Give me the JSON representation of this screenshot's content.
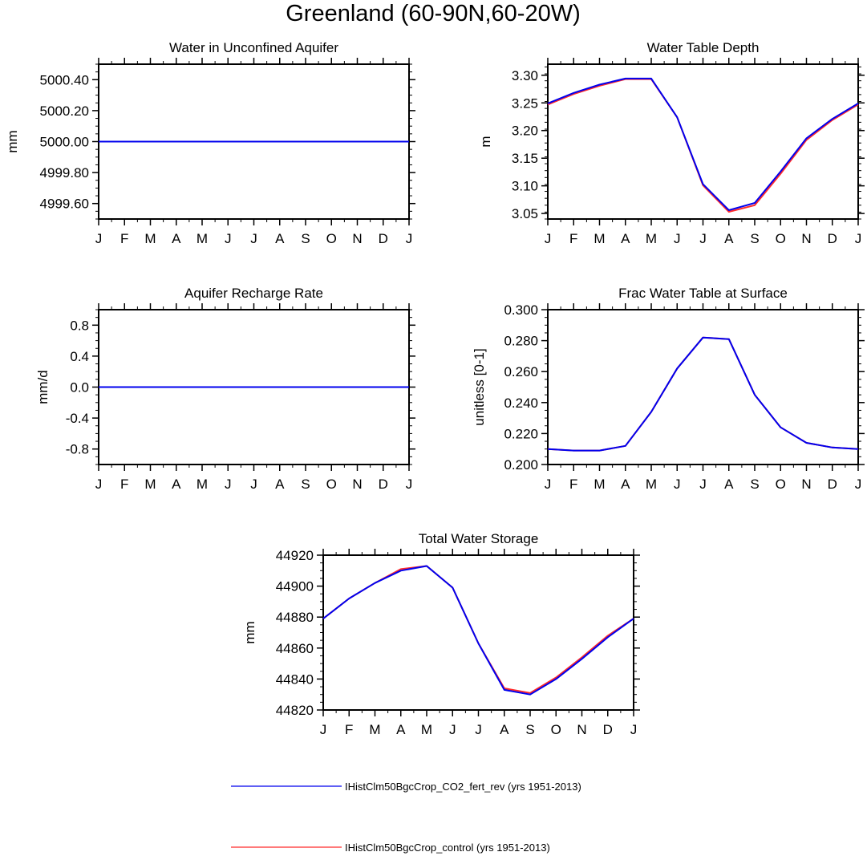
{
  "page": {
    "title": "Greenland (60-90N,60-20W)"
  },
  "colors": {
    "series_rev": "#0000ee",
    "series_control": "#ff2a2a",
    "axis": "#000000"
  },
  "legend": {
    "placement": "bottom-center",
    "entries": [
      {
        "label": "IHistClm50BgcCrop_CO2_fert_rev (yrs 1951-2013)",
        "color": "#0000ee"
      },
      {
        "label": "IHistClm50BgcCrop_control (yrs 1951-2013)",
        "color": "#ff2a2a"
      }
    ]
  },
  "chart_data": [
    {
      "id": "water-in-unconfined-aquifer",
      "type": "line",
      "title": "Water in Unconfined Aquifer",
      "xlabel": "",
      "ylabel": "mm",
      "x": [
        "J",
        "F",
        "M",
        "A",
        "M",
        "J",
        "J",
        "A",
        "S",
        "O",
        "N",
        "D",
        "J"
      ],
      "ylim": [
        4999.5,
        5000.5
      ],
      "yticks": [
        4999.6,
        4999.8,
        5000.0,
        5000.2,
        5000.4
      ],
      "ytick_labels": [
        "4999.60",
        "4999.80",
        "5000.00",
        "5000.20",
        "5000.40"
      ],
      "series": [
        {
          "name": "IHistClm50BgcCrop_control (yrs 1951-2013)",
          "values": [
            5000,
            5000,
            5000,
            5000,
            5000,
            5000,
            5000,
            5000,
            5000,
            5000,
            5000,
            5000,
            5000
          ]
        },
        {
          "name": "IHistClm50BgcCrop_CO2_fert_rev (yrs 1951-2013)",
          "values": [
            5000,
            5000,
            5000,
            5000,
            5000,
            5000,
            5000,
            5000,
            5000,
            5000,
            5000,
            5000,
            5000
          ]
        }
      ]
    },
    {
      "id": "water-table-depth",
      "type": "line",
      "title": "Water Table Depth",
      "xlabel": "",
      "ylabel": "m",
      "x": [
        "J",
        "F",
        "M",
        "A",
        "M",
        "J",
        "J",
        "A",
        "S",
        "O",
        "N",
        "D",
        "J"
      ],
      "ylim": [
        3.04,
        3.32
      ],
      "yticks": [
        3.05,
        3.1,
        3.15,
        3.2,
        3.25,
        3.3
      ],
      "ytick_labels": [
        "3.05",
        "3.10",
        "3.15",
        "3.20",
        "3.25",
        "3.30"
      ],
      "series": [
        {
          "name": "IHistClm50BgcCrop_control (yrs 1951-2013)",
          "values": [
            3.247,
            3.266,
            3.281,
            3.293,
            3.293,
            3.224,
            3.101,
            3.053,
            3.065,
            3.122,
            3.183,
            3.219,
            3.247
          ]
        },
        {
          "name": "IHistClm50BgcCrop_CO2_fert_rev (yrs 1951-2013)",
          "values": [
            3.249,
            3.268,
            3.283,
            3.294,
            3.294,
            3.224,
            3.103,
            3.056,
            3.069,
            3.126,
            3.186,
            3.221,
            3.249
          ]
        }
      ]
    },
    {
      "id": "aquifer-recharge-rate",
      "type": "line",
      "title": "Aquifer Recharge Rate",
      "xlabel": "",
      "ylabel": "mm/d",
      "x": [
        "J",
        "F",
        "M",
        "A",
        "M",
        "J",
        "J",
        "A",
        "S",
        "O",
        "N",
        "D",
        "J"
      ],
      "ylim": [
        -1.0,
        1.0
      ],
      "yticks": [
        -0.8,
        -0.4,
        0.0,
        0.4,
        0.8
      ],
      "ytick_labels": [
        "-0.8",
        "-0.4",
        "0.0",
        "0.4",
        "0.8"
      ],
      "series": [
        {
          "name": "IHistClm50BgcCrop_control (yrs 1951-2013)",
          "values": [
            0,
            0,
            0,
            0,
            0,
            0,
            0,
            0,
            0,
            0,
            0,
            0,
            0
          ]
        },
        {
          "name": "IHistClm50BgcCrop_CO2_fert_rev (yrs 1951-2013)",
          "values": [
            0,
            0,
            0,
            0,
            0,
            0,
            0,
            0,
            0,
            0,
            0,
            0,
            0
          ]
        }
      ]
    },
    {
      "id": "frac-water-table-at-surface",
      "type": "line",
      "title": "Frac Water Table at Surface",
      "xlabel": "",
      "ylabel": "unitless [0-1]",
      "x": [
        "J",
        "F",
        "M",
        "A",
        "M",
        "J",
        "J",
        "A",
        "S",
        "O",
        "N",
        "D",
        "J"
      ],
      "ylim": [
        0.2,
        0.3
      ],
      "yticks": [
        0.2,
        0.22,
        0.24,
        0.26,
        0.28,
        0.3
      ],
      "ytick_labels": [
        "0.200",
        "0.220",
        "0.240",
        "0.260",
        "0.280",
        "0.300"
      ],
      "series": [
        {
          "name": "IHistClm50BgcCrop_control (yrs 1951-2013)",
          "values": [
            0.21,
            0.209,
            0.209,
            0.212,
            0.234,
            0.262,
            0.282,
            0.281,
            0.245,
            0.224,
            0.214,
            0.211,
            0.21
          ]
        },
        {
          "name": "IHistClm50BgcCrop_CO2_fert_rev (yrs 1951-2013)",
          "values": [
            0.21,
            0.209,
            0.209,
            0.212,
            0.234,
            0.262,
            0.282,
            0.281,
            0.245,
            0.224,
            0.214,
            0.211,
            0.21
          ]
        }
      ]
    },
    {
      "id": "total-water-storage",
      "type": "line",
      "title": "Total Water Storage",
      "xlabel": "",
      "ylabel": "mm",
      "x": [
        "J",
        "F",
        "M",
        "A",
        "M",
        "J",
        "J",
        "A",
        "S",
        "O",
        "N",
        "D",
        "J"
      ],
      "ylim": [
        44820,
        44920
      ],
      "yticks": [
        44820,
        44840,
        44860,
        44880,
        44900,
        44920
      ],
      "ytick_labels": [
        "44820",
        "44840",
        "44860",
        "44880",
        "44900",
        "44920"
      ],
      "series": [
        {
          "name": "IHistClm50BgcCrop_control (yrs 1951-2013)",
          "values": [
            44879,
            44892,
            44902,
            44911,
            44913,
            44899,
            44863,
            44834,
            44831,
            44841,
            44854,
            44868,
            44879
          ]
        },
        {
          "name": "IHistClm50BgcCrop_CO2_fert_rev (yrs 1951-2013)",
          "values": [
            44879,
            44892,
            44902,
            44910,
            44913,
            44899,
            44863,
            44833,
            44830,
            44840,
            44853,
            44867,
            44879
          ]
        }
      ]
    }
  ]
}
